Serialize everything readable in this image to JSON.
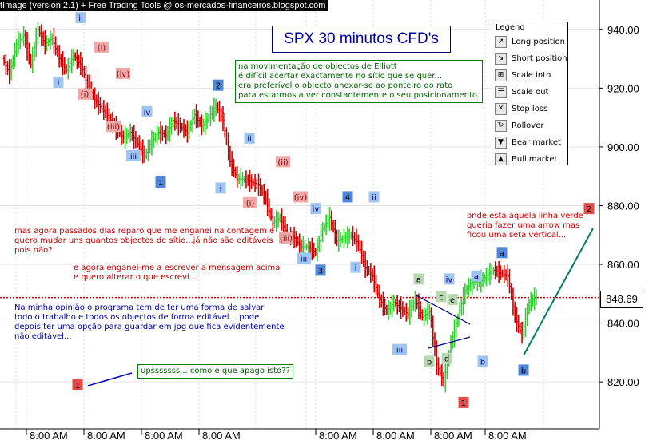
{
  "header": {
    "caption": "tImage (version 2.1) + Free Trading Tools @ os-mercados-financeiros.blogspot.com"
  },
  "title": "SPX 30 minutos CFD's",
  "notes": {
    "elliott": "na movimentação de objectos de Elliott\né difícil acertar exactamente no sítio que se quer...\nera preferível o objecto anexar-se ao ponteiro do rato\npara estarmos a ver constantemente o seu posicionamento.",
    "mistake": "mas agora passados dias reparo que me enganei na contagem e\nquero mudar uns quantos objectos de sítio...já não são editáveis\npois não?",
    "message": "e agora enganei-me a escrever a mensagem acima\ne quero alterar o que escrevi...",
    "opinion": "Na minha opinião o programa tem de ter uma forma de salvar\ntodo o trabalho e todos os objectos de forma editável... pode\ndepois ter uma opção para guardar em jpg que fica evidentemente\nnão editável...",
    "oops": "upsssssss... como é que apago isto??",
    "arrow": "onde está aquela linha verde\nqueria fazer uma arrow mas\nficou uma seta vertical..."
  },
  "legend": {
    "title": "Legend",
    "items": [
      {
        "label": "Long position",
        "icon": "long-position-icon",
        "glyph": "↗"
      },
      {
        "label": "Short position",
        "icon": "short-position-icon",
        "glyph": "↘"
      },
      {
        "label": "Scale into",
        "icon": "scale-into-icon",
        "glyph": "⊞"
      },
      {
        "label": "Scale out",
        "icon": "scale-out-icon",
        "glyph": "☰"
      },
      {
        "label": "Stop loss",
        "icon": "stop-loss-icon",
        "glyph": "✕"
      },
      {
        "label": "Rollover",
        "icon": "rollover-icon",
        "glyph": "↻"
      },
      {
        "label": "Bear market",
        "icon": "bear-market-icon",
        "glyph": "▼"
      },
      {
        "label": "Bull market",
        "icon": "bull-market-icon",
        "glyph": "▲"
      }
    ]
  },
  "last_price": "848.69",
  "chart_data": {
    "type": "line",
    "ylim": [
      804,
      950
    ],
    "y_ticks": [
      "940.00",
      "920.00",
      "900.00",
      "880.00",
      "860.00",
      "840.00",
      "820.00"
    ],
    "y_tick_values": [
      940,
      920,
      900,
      880,
      860,
      840,
      820
    ],
    "x_tick_labels": [
      "8:00 AM",
      "8:00 AM",
      "8:00 AM",
      "8:00 AM",
      "8:00 AM",
      "8:00 AM",
      "8:00 AM",
      "8:00 AM"
    ],
    "current_price": 848.69,
    "series": [
      {
        "values": [
          930,
          925,
          935,
          938,
          928,
          940,
          935,
          937,
          930,
          926,
          931,
          928,
          921,
          916,
          913,
          910,
          906,
          903,
          905,
          901,
          897,
          902,
          905,
          904,
          909,
          907,
          905,
          911,
          907,
          910,
          914,
          909,
          895,
          889,
          889,
          888,
          887,
          882,
          874,
          876,
          870,
          869,
          866,
          866,
          864,
          872,
          876,
          868,
          869,
          870,
          867,
          859,
          856,
          848,
          844,
          847,
          845,
          843,
          848,
          842,
          844,
          826,
          820,
          833,
          842,
          851,
          854,
          854,
          856,
          858,
          857,
          856,
          842,
          836,
          847,
          849
        ]
      }
    ],
    "wave_labels": [
      {
        "text": "ii",
        "price": 944,
        "style": "blue"
      },
      {
        "text": "i",
        "price": 922,
        "style": "blue"
      },
      {
        "text": "(i)",
        "price": 934,
        "style": "red"
      },
      {
        "text": "(i)",
        "price": 918,
        "style": "red"
      },
      {
        "text": "(iv)",
        "price": 925,
        "style": "red"
      },
      {
        "text": "(iii)",
        "price": 907,
        "style": "red"
      },
      {
        "text": "iv",
        "price": 912,
        "style": "blue"
      },
      {
        "text": "iii",
        "price": 897,
        "style": "blue"
      },
      {
        "text": "1",
        "price": 888,
        "style": "dark"
      },
      {
        "text": "2",
        "price": 921,
        "style": "dark"
      },
      {
        "text": "ii",
        "price": 903,
        "style": "blue"
      },
      {
        "text": "i",
        "price": 886,
        "style": "blue"
      },
      {
        "text": "(i)",
        "price": 881,
        "style": "red"
      },
      {
        "text": "(ii)",
        "price": 895,
        "style": "red"
      },
      {
        "text": "(iv)",
        "price": 883,
        "style": "red"
      },
      {
        "text": "iv",
        "price": 879,
        "style": "blue"
      },
      {
        "text": "(iii)",
        "price": 869,
        "style": "red"
      },
      {
        "text": "iii",
        "price": 862,
        "style": "blue"
      },
      {
        "text": "3",
        "price": 858,
        "style": "dark"
      },
      {
        "text": "4",
        "price": 883,
        "style": "dark"
      },
      {
        "text": "ii",
        "price": 883,
        "style": "blue"
      },
      {
        "text": "i",
        "price": 859,
        "style": "blue"
      },
      {
        "text": "iii",
        "price": 831,
        "style": "blue"
      },
      {
        "text": "a",
        "price": 855,
        "style": "green"
      },
      {
        "text": "c",
        "price": 849,
        "style": "green"
      },
      {
        "text": "e",
        "price": 848,
        "style": "green"
      },
      {
        "text": "iv",
        "price": 855,
        "style": "blue"
      },
      {
        "text": "a",
        "price": 856,
        "style": "blue"
      },
      {
        "text": "a",
        "price": 864,
        "style": "dark"
      },
      {
        "text": "b",
        "price": 827,
        "style": "green"
      },
      {
        "text": "d",
        "price": 828,
        "style": "green"
      },
      {
        "text": "b",
        "price": 827,
        "style": "blue"
      },
      {
        "text": "b",
        "price": 824,
        "style": "dark"
      },
      {
        "text": "1",
        "price": 813,
        "style": "red-solid"
      },
      {
        "text": "1",
        "price": 819,
        "style": "red-solid"
      },
      {
        "text": "2",
        "price": 879,
        "style": "red-solid"
      }
    ]
  },
  "colors": {
    "up_bar": "#33cc33",
    "down_bar": "#cc0000",
    "price_line": "#cc0000",
    "trend_arrow": "#008060",
    "label_blue": "#a0c4f0",
    "label_dark": "#4f86d8",
    "label_red": "#f0a8a8",
    "label_green": "#b8d8b0",
    "label_red_solid": "#e84a4a"
  }
}
